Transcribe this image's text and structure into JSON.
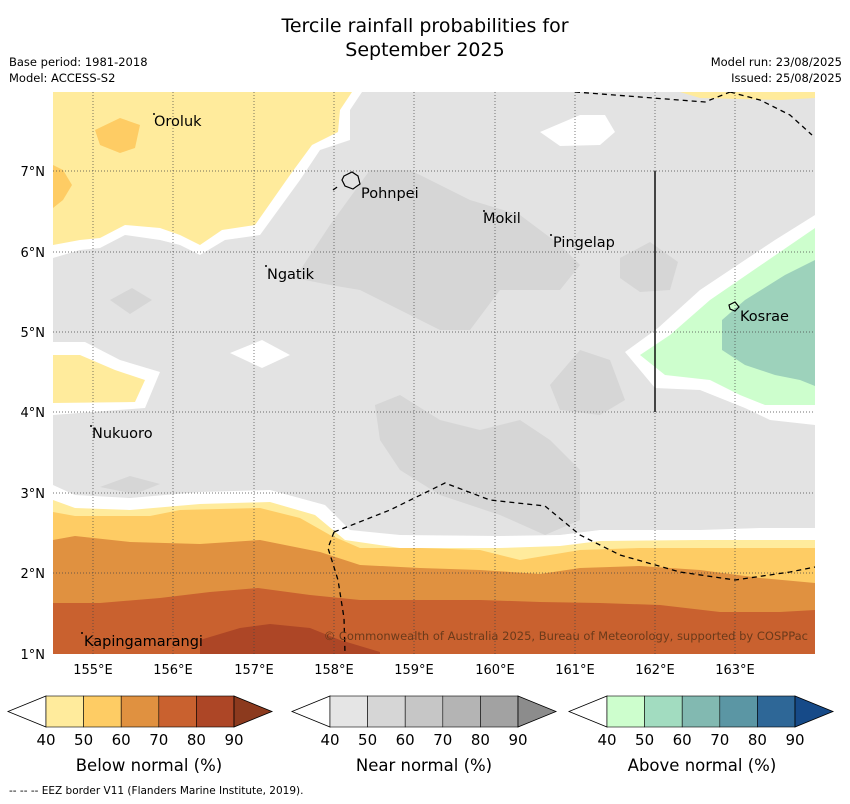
{
  "header": {
    "title_line1": "Tercile rainfall probabilities for",
    "title_line2": "September 2025",
    "base_period": "Base period: 1981-2018",
    "model": "Model: ACCESS-S2",
    "model_run": "Model run: 23/08/2025",
    "issued": "Issued: 25/08/2025"
  },
  "map": {
    "lon_ticks": [
      "155°E",
      "156°E",
      "157°E",
      "158°E",
      "159°E",
      "160°E",
      "161°E",
      "162°E",
      "163°E"
    ],
    "lat_ticks": [
      "7°N",
      "6°N",
      "5°N",
      "4°N",
      "3°N",
      "2°N",
      "1°N"
    ],
    "places": {
      "oroluk": "Oroluk",
      "pohnpei": "Pohnpei",
      "mokil": "Mokil",
      "pingelap": "Pingelap",
      "ngatik": "Ngatik",
      "kosrae": "Kosrae",
      "nukuoro": "Nukuoro",
      "kapingamarangi": "Kapingamarangi"
    },
    "copyright": "© Commonwealth of Australia 2025, Bureau of Meteorology, supported by COSPPac",
    "colors": {
      "near_normal_base": "#e3e3e3",
      "near_normal_50": "#d6d6d6",
      "below_40": "#ffeb9c",
      "below_50": "#fecc64",
      "below_60": "#e09140",
      "below_70": "#c9612f",
      "below_80": "#ad4626",
      "above_40": "#cdfecd",
      "above_50": "#9dd2bb"
    }
  },
  "legends": {
    "ticks": [
      "40",
      "50",
      "60",
      "70",
      "80",
      "90"
    ],
    "below": {
      "label": "Below normal (%)",
      "colors": [
        "#ffeb9c",
        "#fecc64",
        "#e09140",
        "#c9612f",
        "#ad4626",
        "#8c3a1e"
      ]
    },
    "near": {
      "label": "Near normal (%)",
      "colors": [
        "#e5e5e5",
        "#d6d6d6",
        "#c6c6c6",
        "#b4b4b4",
        "#a2a2a2",
        "#8c8c8c"
      ]
    },
    "above": {
      "label": "Above normal (%)",
      "colors": [
        "#cdfecd",
        "#a2dcc0",
        "#82b9b1",
        "#5b96a4",
        "#2e6797",
        "#164a88"
      ]
    }
  },
  "footer": {
    "eez_note": "--  --  -- EEZ border V11 (Flanders Marine Institute, 2019)."
  }
}
